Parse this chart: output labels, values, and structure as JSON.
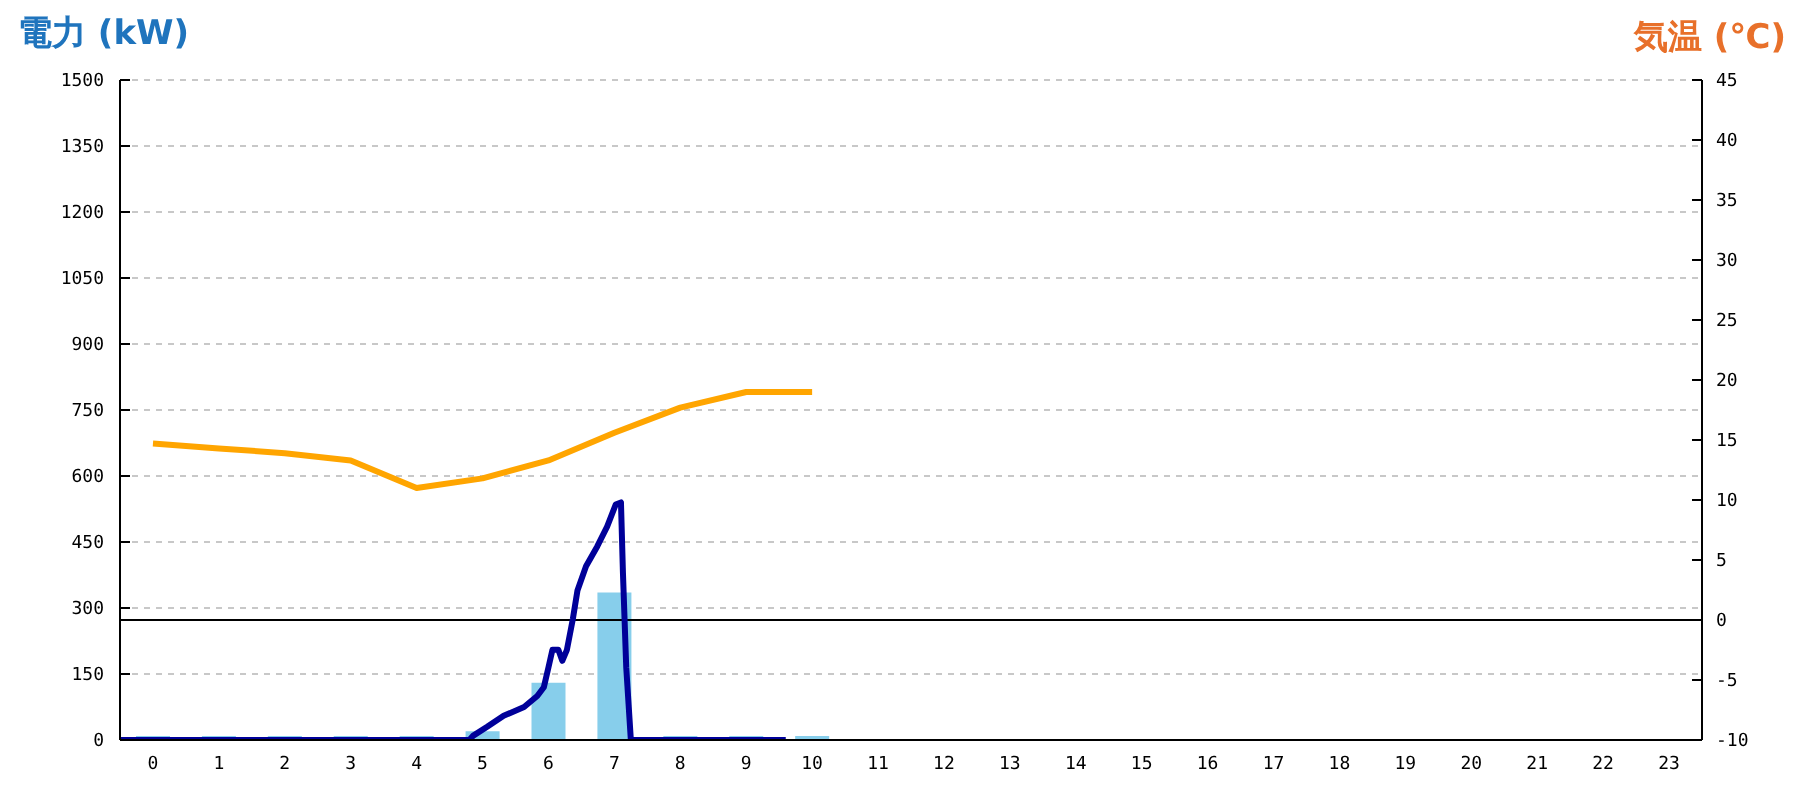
{
  "chart_data": {
    "type": "bar",
    "ylabel": "電力 (kW)",
    "y2label": "気温 (℃)",
    "x": [
      0,
      1,
      2,
      3,
      4,
      5,
      6,
      7,
      8,
      9,
      10
    ],
    "xlim": [
      -0.5,
      23.5
    ],
    "xticks": [
      0,
      1,
      2,
      3,
      4,
      5,
      6,
      7,
      8,
      9,
      10,
      11,
      12,
      13,
      14,
      15,
      16,
      17,
      18,
      19,
      20,
      21,
      22,
      23
    ],
    "ylim": [
      0,
      1500
    ],
    "yticks": [
      0,
      150,
      300,
      450,
      600,
      750,
      900,
      1050,
      1200,
      1350,
      1500
    ],
    "y2lim": [
      -10,
      45
    ],
    "y2ticks": [
      -10,
      -5,
      0,
      5,
      10,
      15,
      20,
      25,
      30,
      35,
      40,
      45
    ],
    "grid": "y",
    "ref_lines": [
      {
        "axis": "y2",
        "value": 0,
        "color": "#000000"
      }
    ],
    "series": [
      {
        "color": "#87ceeb",
        "values": [
          0,
          0,
          0,
          0,
          0,
          20,
          130,
          335,
          0,
          0,
          0
        ]
      },
      {
        "type": "line",
        "color": "#000099",
        "x": [
          -0.5,
          4.8,
          4.86,
          5.07,
          5.32,
          5.63,
          5.83,
          5.93,
          6.0,
          6.06,
          6.15,
          6.21,
          6.28,
          6.37,
          6.44,
          6.57,
          6.74,
          6.89,
          7.02,
          7.1,
          7.13,
          7.18,
          7.25,
          9.6
        ],
        "values": [
          0,
          0,
          10,
          30,
          55,
          75,
          100,
          120,
          165,
          205,
          205,
          180,
          205,
          275,
          340,
          395,
          440,
          485,
          535,
          540,
          380,
          165,
          0,
          0
        ]
      },
      {
        "type": "line",
        "axis": "y2",
        "color": "#ffa500",
        "values": [
          14.7,
          14.3,
          13.9,
          13.3,
          11.0,
          11.8,
          13.3,
          15.6,
          17.7,
          19.0,
          19.0
        ]
      }
    ]
  }
}
